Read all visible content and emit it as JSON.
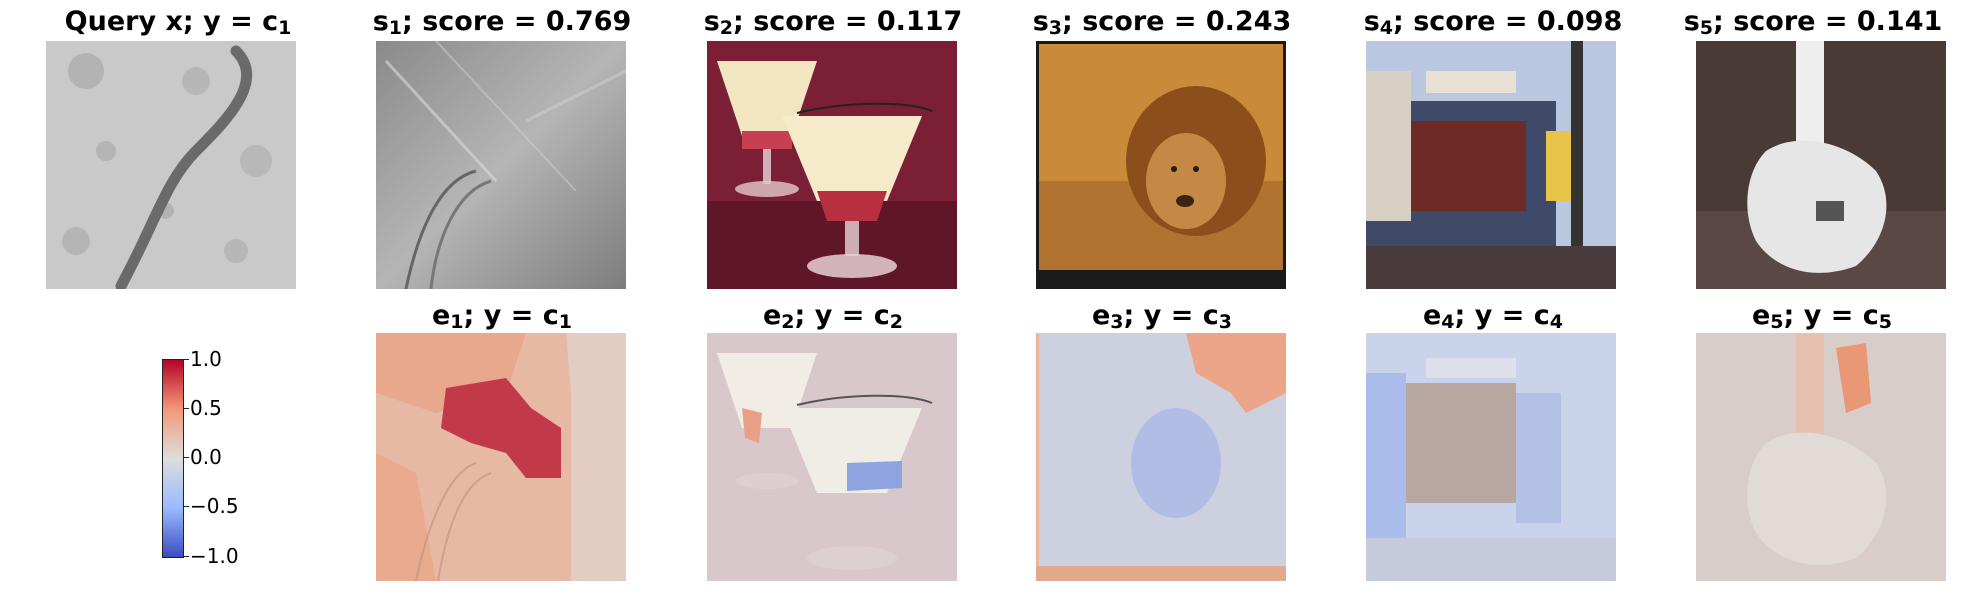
{
  "row1": [
    {
      "label": "Query x; y = c",
      "sub": "1",
      "tail": ""
    },
    {
      "label": "s",
      "sub": "1",
      "tail": "; score = 0.769"
    },
    {
      "label": "s",
      "sub": "2",
      "tail": "; score = 0.117"
    },
    {
      "label": "s",
      "sub": "3",
      "tail": "; score = 0.243"
    },
    {
      "label": "s",
      "sub": "4",
      "tail": "; score = 0.098"
    },
    {
      "label": "s",
      "sub": "5",
      "tail": "; score = 0.141"
    }
  ],
  "row2": [
    {
      "label": "e",
      "sub": "1",
      "mid": "; y = c",
      "sub2": "1"
    },
    {
      "label": "e",
      "sub": "2",
      "mid": "; y = c",
      "sub2": "2"
    },
    {
      "label": "e",
      "sub": "3",
      "mid": "; y = c",
      "sub2": "3"
    },
    {
      "label": "e",
      "sub": "4",
      "mid": "; y = c",
      "sub2": "4"
    },
    {
      "label": "e",
      "sub": "5",
      "mid": "; y = c",
      "sub2": "5"
    }
  ],
  "colorbar": {
    "ticks": [
      "1.0",
      "0.5",
      "0.0",
      "−0.5",
      "−1.0"
    ],
    "colors": {
      "high": "#b40426",
      "mid": "#dddddd",
      "low": "#3b4cc0"
    }
  }
}
